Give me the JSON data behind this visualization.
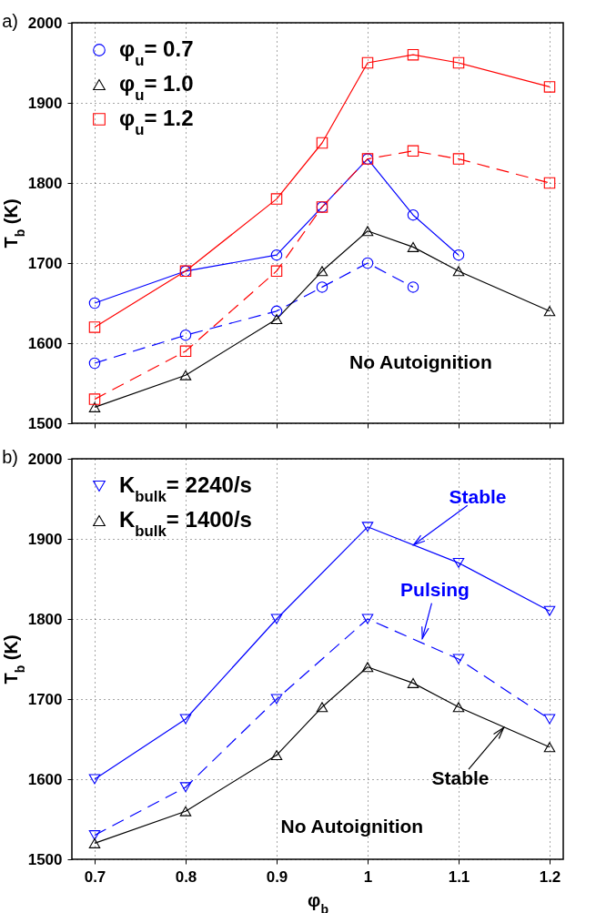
{
  "chart_data": [
    {
      "type": "line",
      "title": "a)",
      "ylabel": "T$_{b}$ (K)",
      "xlim": [
        0.675,
        1.215
      ],
      "xticks": [
        0.7,
        0.8,
        0.9,
        1,
        1.1,
        1.2
      ],
      "ylim": [
        1500,
        2000
      ],
      "yticks": [
        1500,
        1600,
        1700,
        1800,
        1900,
        2000
      ],
      "grid": true,
      "legend": "top left",
      "tick_labels": "y",
      "annotations": [
        "No Autoignition"
      ],
      "series": [
        {
          "name": "φ$_{u}$= 0.7",
          "color": "#0000ff",
          "marker": "circle",
          "line_style": "solid",
          "x": [
            0.7,
            0.8,
            0.9,
            0.95,
            1,
            1.05,
            1.1
          ],
          "values": [
            1650,
            1690,
            1710,
            1770,
            1830,
            1760,
            1710
          ]
        },
        {
          "color": "#0000ff",
          "marker": "circle",
          "line_style": "dashed",
          "x": [
            0.7,
            0.8,
            0.9,
            0.95,
            1,
            1.05
          ],
          "values": [
            1575,
            1610,
            1640,
            1670,
            1700,
            1670
          ]
        },
        {
          "name": "φ$_{u}$= 1.0",
          "color": "#000000",
          "marker": "triangle",
          "line_style": "solid",
          "x": [
            0.7,
            0.8,
            0.9,
            0.95,
            1,
            1.05,
            1.1,
            1.2
          ],
          "values": [
            1520,
            1560,
            1630,
            1690,
            1740,
            1720,
            1690,
            1640
          ]
        },
        {
          "name": "φ$_{u}$= 1.2",
          "color": "#ff0000",
          "marker": "square",
          "line_style": "solid",
          "x": [
            0.7,
            0.8,
            0.9,
            0.95,
            1,
            1.05,
            1.1,
            1.2
          ],
          "values": [
            1620,
            1690,
            1780,
            1850,
            1950,
            1960,
            1950,
            1920
          ]
        },
        {
          "color": "#ff0000",
          "marker": "square",
          "line_style": "dashed",
          "x": [
            0.7,
            0.8,
            0.9,
            0.95,
            1,
            1.05,
            1.1,
            1.2
          ],
          "values": [
            1530,
            1590,
            1690,
            1770,
            1830,
            1840,
            1830,
            1800
          ]
        }
      ]
    },
    {
      "type": "line",
      "title": "b)",
      "xlabel": "φ$_{b}$",
      "ylabel": "T$_{b}$ (K)",
      "xlim": [
        0.675,
        1.215
      ],
      "xticks": [
        0.7,
        0.8,
        0.9,
        1,
        1.1,
        1.2
      ],
      "ylim": [
        1500,
        2000
      ],
      "yticks": [
        1500,
        1600,
        1700,
        1800,
        1900,
        2000
      ],
      "grid": true,
      "legend": "top left",
      "annotations": [
        {
          "text": "Stable",
          "x": 1.05,
          "y": 1892
        },
        {
          "text": "Pulsing",
          "x": 1.06,
          "y": 1775
        },
        {
          "text": "Stable",
          "x": 1.15,
          "y": 1665
        },
        "No Autoignition"
      ],
      "series": [
        {
          "name": "K$_{bulk}$= 2240/s",
          "color": "#0000ff",
          "marker": "triangle-down",
          "line_style": "solid",
          "x": [
            0.7,
            0.8,
            0.9,
            1,
            1.1,
            1.2
          ],
          "values": [
            1600,
            1675,
            1800,
            1915,
            1870,
            1810
          ]
        },
        {
          "color": "#0000ff",
          "marker": "triangle-down",
          "line_style": "dashed",
          "x": [
            0.7,
            0.8,
            0.9,
            1,
            1.1,
            1.2
          ],
          "values": [
            1530,
            1590,
            1700,
            1800,
            1750,
            1675
          ]
        },
        {
          "name": "K$_{bulk}$= 1400/s",
          "color": "#000000",
          "marker": "triangle",
          "line_style": "solid",
          "x": [
            0.7,
            0.8,
            0.9,
            0.95,
            1,
            1.05,
            1.1,
            1.2
          ],
          "values": [
            1520,
            1560,
            1630,
            1690,
            1740,
            1720,
            1690,
            1640
          ]
        }
      ]
    }
  ]
}
